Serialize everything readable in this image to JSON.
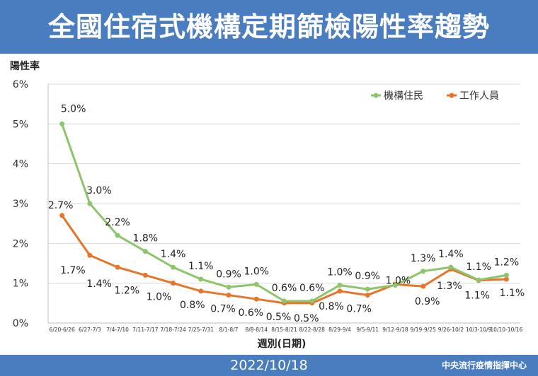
{
  "header": {
    "title": "全國住宿式機構定期篩檢陽性率趨勢"
  },
  "footer": {
    "date": "2022/10/18",
    "source": "中央流行疫情指揮中心"
  },
  "colors": {
    "header_bg": "#4a7cc0",
    "institution": "#8cc56a",
    "staff": "#e8742a",
    "grid": "#d9d9d9"
  },
  "chart_data": {
    "type": "line",
    "title": "",
    "xlabel": "週別(日期)",
    "ylabel": "陽性率",
    "ylim": [
      0,
      6
    ],
    "yticks": [
      "0%",
      "1%",
      "2%",
      "3%",
      "4%",
      "5%",
      "6%"
    ],
    "grid": true,
    "legend_position": "top-right",
    "categories": [
      "6/20-6/26",
      "6/27-7/3",
      "7/4-7/10",
      "7/11-7/17",
      "7/18-7/24",
      "7/25-7/31",
      "8/1-8/7",
      "8/8-8/14",
      "8/15-8/21",
      "8/22-8/28",
      "8/29-9/4",
      "9/5-9/11",
      "9/12-9/18",
      "9/19-9/25",
      "9/26-10/2",
      "10/3-10/9",
      "10/10-10/16"
    ],
    "series": [
      {
        "name": "機構住民",
        "color": "#8cc56a",
        "values": [
          5.0,
          3.0,
          2.2,
          1.8,
          1.4,
          1.1,
          0.9,
          0.97,
          0.55,
          0.55,
          0.95,
          0.85,
          0.95,
          1.3,
          1.4,
          1.08,
          1.2
        ],
        "labels": [
          "5.0%",
          "3.0%",
          "2.2%",
          "1.8%",
          "1.4%",
          "1.1%",
          "0.9%",
          "1.0%",
          "0.6%",
          "0.6%",
          "1.0%",
          "0.9%",
          "1.0%",
          "1.3%",
          "1.4%",
          "1.1%",
          "1.2%"
        ]
      },
      {
        "name": "工作人員",
        "color": "#e8742a",
        "values": [
          2.7,
          1.7,
          1.4,
          1.2,
          1.0,
          0.8,
          0.7,
          0.6,
          0.5,
          0.5,
          0.8,
          0.7,
          0.97,
          0.92,
          1.35,
          1.07,
          1.1
        ],
        "labels": [
          "2.7%",
          "1.7%",
          "1.4%",
          "1.2%",
          "1.0%",
          "0.8%",
          "0.7%",
          "0.6%",
          "0.5%",
          "0.5%",
          "0.8%",
          "0.7%",
          "",
          "0.9%",
          "1.3%",
          "1.1%",
          "1.1%"
        ]
      }
    ]
  }
}
